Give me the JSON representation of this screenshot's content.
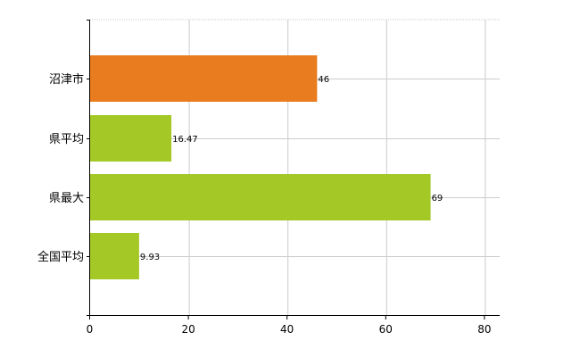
{
  "chart_data": {
    "type": "bar",
    "orientation": "horizontal",
    "categories": [
      "沼津市",
      "県平均",
      "県最大",
      "全国平均"
    ],
    "values": [
      46,
      16.47,
      69,
      9.93
    ],
    "data_labels": [
      "46",
      "16.47",
      "69",
      "9.93"
    ],
    "colors": [
      "#e87c1e",
      "#a4c926",
      "#a4c926",
      "#a4c926"
    ],
    "xlim": [
      0,
      83
    ],
    "xticks": [
      0,
      20,
      40,
      60,
      80
    ],
    "grid": true,
    "legend": "none",
    "title": "",
    "xlabel": "",
    "ylabel": ""
  }
}
